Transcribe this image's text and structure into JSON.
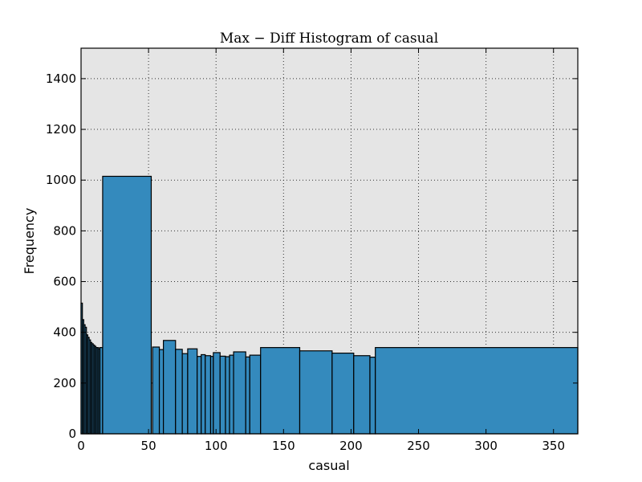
{
  "chart_data": {
    "type": "bar",
    "title": "Max − Diff Histogram of casual",
    "xlabel": "casual",
    "ylabel": "Frequency",
    "xlim": [
      0,
      368
    ],
    "ylim": [
      0,
      1520
    ],
    "xticks": [
      0,
      50,
      100,
      150,
      200,
      250,
      300,
      350
    ],
    "yticks": [
      0,
      200,
      400,
      600,
      800,
      1000,
      1200,
      1400
    ],
    "grid": true,
    "bar_color": "#348abd",
    "background_color": "#e5e5e5",
    "bins": [
      {
        "x0": 0,
        "x1": 1,
        "count": 515
      },
      {
        "x0": 1,
        "x1": 2,
        "count": 450
      },
      {
        "x0": 2,
        "x1": 3,
        "count": 430
      },
      {
        "x0": 3,
        "x1": 4,
        "count": 420
      },
      {
        "x0": 4,
        "x1": 5,
        "count": 390
      },
      {
        "x0": 5,
        "x1": 6,
        "count": 380
      },
      {
        "x0": 6,
        "x1": 7,
        "count": 370
      },
      {
        "x0": 7,
        "x1": 8,
        "count": 360
      },
      {
        "x0": 8,
        "x1": 9,
        "count": 355
      },
      {
        "x0": 9,
        "x1": 10,
        "count": 350
      },
      {
        "x0": 10,
        "x1": 11,
        "count": 345
      },
      {
        "x0": 11,
        "x1": 12,
        "count": 340
      },
      {
        "x0": 12,
        "x1": 13,
        "count": 340
      },
      {
        "x0": 13,
        "x1": 14,
        "count": 335
      },
      {
        "x0": 14,
        "x1": 16,
        "count": 340
      },
      {
        "x0": 16,
        "x1": 52,
        "count": 1015
      },
      {
        "x0": 53,
        "x1": 58,
        "count": 342
      },
      {
        "x0": 58,
        "x1": 61,
        "count": 332
      },
      {
        "x0": 61,
        "x1": 70,
        "count": 368
      },
      {
        "x0": 70,
        "x1": 75,
        "count": 333
      },
      {
        "x0": 75,
        "x1": 79,
        "count": 316
      },
      {
        "x0": 79,
        "x1": 86,
        "count": 335
      },
      {
        "x0": 86,
        "x1": 89,
        "count": 305
      },
      {
        "x0": 89,
        "x1": 92,
        "count": 312
      },
      {
        "x0": 92,
        "x1": 96,
        "count": 308
      },
      {
        "x0": 96,
        "x1": 98,
        "count": 305
      },
      {
        "x0": 98,
        "x1": 103,
        "count": 320
      },
      {
        "x0": 103,
        "x1": 107,
        "count": 306
      },
      {
        "x0": 107,
        "x1": 110,
        "count": 304
      },
      {
        "x0": 110,
        "x1": 113,
        "count": 310
      },
      {
        "x0": 113,
        "x1": 122,
        "count": 323
      },
      {
        "x0": 122,
        "x1": 125,
        "count": 303
      },
      {
        "x0": 125,
        "x1": 133,
        "count": 310
      },
      {
        "x0": 133,
        "x1": 162,
        "count": 340
      },
      {
        "x0": 162,
        "x1": 186,
        "count": 327
      },
      {
        "x0": 186,
        "x1": 202,
        "count": 318
      },
      {
        "x0": 202,
        "x1": 214,
        "count": 308
      },
      {
        "x0": 214,
        "x1": 218,
        "count": 302
      },
      {
        "x0": 218,
        "x1": 368,
        "count": 340
      }
    ]
  }
}
